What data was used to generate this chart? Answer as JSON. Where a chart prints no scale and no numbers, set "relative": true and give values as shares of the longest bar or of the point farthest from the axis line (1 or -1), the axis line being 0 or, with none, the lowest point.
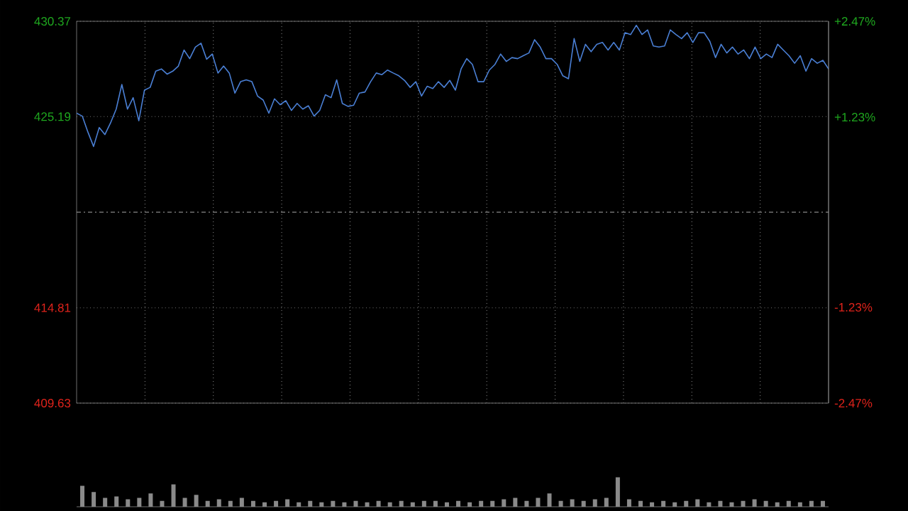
{
  "chart_data": [
    {
      "type": "line",
      "categories": [
        null,
        null,
        null,
        null,
        null,
        null,
        null,
        null,
        null,
        null,
        null,
        null,
        null,
        null,
        null,
        null,
        null,
        null,
        null,
        null,
        null,
        null,
        null,
        null,
        null,
        null,
        null,
        null,
        null,
        null,
        null,
        null,
        null,
        null,
        null,
        null,
        null,
        null,
        null,
        null,
        null,
        null,
        null,
        null,
        null,
        null,
        null,
        null,
        null,
        null,
        null,
        null,
        null,
        null,
        null,
        null,
        null,
        null,
        null,
        null,
        null,
        null,
        null,
        null,
        null,
        null,
        null,
        null,
        null,
        null,
        null,
        null,
        null,
        null,
        null,
        null,
        null,
        null,
        null,
        null,
        null,
        null,
        null,
        null,
        null,
        null,
        null,
        null,
        null,
        null,
        null,
        null,
        null,
        null,
        null,
        null,
        null,
        null,
        null,
        null,
        null,
        null,
        null,
        null,
        null,
        null,
        null,
        null,
        null,
        null,
        null,
        null,
        null,
        null,
        null,
        null,
        null,
        null,
        null,
        null,
        null,
        null,
        null,
        null,
        null,
        null,
        null,
        null,
        null,
        null,
        null,
        null,
        null,
        null
      ],
      "series": [
        {
          "color": "#4a7fd4",
          "values": [
            425.38,
            425.22,
            424.35,
            423.57,
            424.6,
            424.22,
            424.85,
            425.6,
            426.94,
            425.6,
            426.22,
            424.97,
            426.63,
            426.78,
            427.66,
            427.78,
            427.5,
            427.66,
            427.94,
            428.81,
            428.34,
            428.97,
            429.18,
            428.31,
            428.59,
            427.56,
            427.94,
            427.56,
            426.47,
            427.09,
            427.19,
            427.09,
            426.31,
            426.09,
            425.38,
            426.16,
            425.84,
            426.06,
            425.53,
            425.91,
            425.6,
            425.78,
            425.22,
            425.53,
            426.38,
            426.22,
            427.19,
            425.91,
            425.75,
            425.81,
            426.47,
            426.53,
            427.09,
            427.56,
            427.47,
            427.72,
            427.56,
            427.41,
            427.16,
            426.78,
            427.09,
            426.31,
            426.84,
            426.72,
            427.09,
            426.78,
            427.16,
            426.63,
            427.78,
            428.34,
            428.03,
            427.09,
            427.09,
            427.72,
            428.03,
            428.59,
            428.19,
            428.4,
            428.34,
            428.5,
            428.65,
            429.37,
            428.97,
            428.34,
            428.34,
            428.03,
            427.41,
            427.25,
            429.43,
            428.19,
            429.12,
            428.72,
            429.12,
            429.22,
            428.81,
            429.22,
            428.81,
            429.75,
            429.65,
            430.15,
            429.65,
            429.9,
            429.03,
            428.97,
            429.03,
            429.9,
            429.65,
            429.43,
            429.75,
            429.22,
            429.75,
            429.75,
            429.28,
            428.4,
            429.12,
            428.65,
            428.97,
            428.59,
            428.81,
            428.34,
            428.97,
            428.34,
            428.59,
            428.4,
            429.12,
            428.81,
            428.5,
            428.09,
            428.5,
            427.66,
            428.34,
            428.09,
            428.25,
            427.78
          ]
        }
      ],
      "ylim": [
        409.63,
        430.37
      ],
      "yticks": [
        409.63,
        414.81,
        425.19,
        430.37
      ],
      "y2lim": [
        -2.47,
        2.47
      ],
      "y2ticks": [
        {
          "value": -2.47,
          "label": "-2.47%"
        },
        {
          "value": -1.23,
          "label": "-1.23%"
        },
        {
          "value": 1.23,
          "label": "+1.23%"
        },
        {
          "value": 2.47,
          "label": "+2.47%"
        }
      ],
      "ref_lines": [
        {
          "axis": "y",
          "value": 420,
          "color": "#aaaaaa",
          "line_style": "dashed"
        }
      ],
      "grid": true
    },
    {
      "type": "bar",
      "relative": true,
      "color": "#8a8a8a",
      "categories": [
        null,
        null,
        null,
        null,
        null,
        null,
        null,
        null,
        null,
        null,
        null,
        null,
        null,
        null,
        null,
        null,
        null,
        null,
        null,
        null,
        null,
        null,
        null,
        null,
        null,
        null,
        null,
        null,
        null,
        null,
        null,
        null,
        null,
        null,
        null,
        null,
        null,
        null,
        null,
        null,
        null,
        null,
        null,
        null,
        null,
        null,
        null,
        null,
        null,
        null,
        null,
        null,
        null,
        null,
        null,
        null,
        null,
        null,
        null,
        null,
        null,
        null,
        null,
        null,
        null,
        null
      ],
      "values": [
        0.71,
        0.5,
        0.3,
        0.35,
        0.25,
        0.3,
        0.45,
        0.2,
        0.76,
        0.3,
        0.4,
        0.2,
        0.25,
        0.2,
        0.3,
        0.2,
        0.15,
        0.2,
        0.25,
        0.15,
        0.2,
        0.15,
        0.2,
        0.15,
        0.2,
        0.15,
        0.2,
        0.15,
        0.2,
        0.15,
        0.2,
        0.2,
        0.15,
        0.2,
        0.15,
        0.2,
        0.2,
        0.25,
        0.3,
        0.2,
        0.3,
        0.45,
        0.2,
        0.25,
        0.2,
        0.25,
        0.3,
        1.0,
        0.25,
        0.2,
        0.15,
        0.2,
        0.15,
        0.2,
        0.25,
        0.15,
        0.2,
        0.15,
        0.2,
        0.25,
        0.2,
        0.15,
        0.2,
        0.15,
        0.2,
        0.2
      ]
    }
  ]
}
